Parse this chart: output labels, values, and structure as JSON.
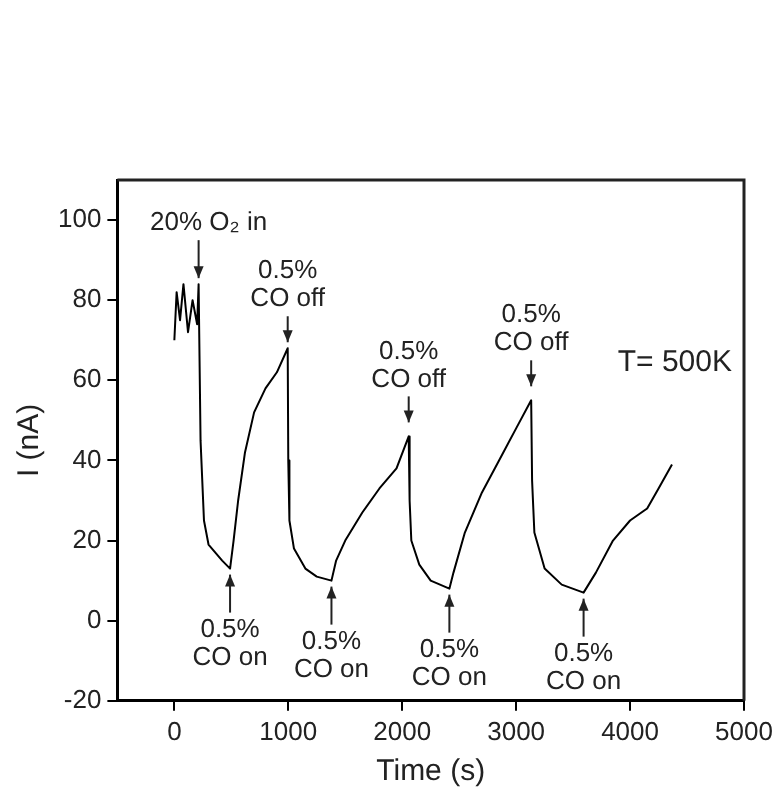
{
  "chart_data": {
    "type": "line",
    "xlabel": "Time (s)",
    "ylabel": "I (nA)",
    "xlim": [
      -500,
      5000
    ],
    "xticks": [
      0,
      1000,
      2000,
      3000,
      4000,
      5000
    ],
    "ylim": [
      -20,
      110
    ],
    "yticks": [
      -20,
      0,
      20,
      40,
      60,
      80,
      100
    ],
    "grid": false,
    "legend": false,
    "marker": "none",
    "line_style": "solid",
    "series": [
      {
        "color": "#000000",
        "x": [
          0,
          20,
          50,
          80,
          120,
          160,
          200,
          213,
          230,
          260,
          300,
          360,
          420,
          489,
          520,
          560,
          620,
          700,
          800,
          900,
          995,
          1000,
          1010,
          1050,
          1150,
          1250,
          1379,
          1420,
          1500,
          1650,
          1800,
          1950,
          2057,
          2065,
          2080,
          2150,
          2250,
          2414,
          2450,
          2550,
          2700,
          2850,
          3000,
          3132,
          3140,
          3160,
          3250,
          3400,
          3592,
          3700,
          3850,
          4000,
          4150,
          4250,
          4368
        ],
        "values": [
          70,
          82,
          75,
          84,
          72,
          80,
          74,
          84,
          45,
          25,
          19,
          17,
          15,
          13,
          20,
          30,
          42,
          52,
          58,
          62,
          68,
          40,
          25,
          18,
          13,
          11,
          10,
          15,
          20,
          27,
          33,
          38,
          46,
          30,
          20,
          14,
          10,
          8,
          12,
          22,
          32,
          40,
          48,
          55,
          35,
          22,
          13,
          9,
          7,
          12,
          20,
          25,
          28,
          33,
          39
        ]
      }
    ],
    "annotations": [
      {
        "text": "20% O₂ in",
        "x": 213,
        "y": 84
      },
      {
        "text": "0.5%\nCO off",
        "x": 995,
        "y": 68
      },
      {
        "text": "0.5%\nCO off",
        "x": 2057,
        "y": 48
      },
      {
        "text": "0.5%\nCO off",
        "x": 3132,
        "y": 57
      },
      {
        "text": "0.5%\nCO on",
        "x": 489,
        "y": 13
      },
      {
        "text": "0.5%\nCO on",
        "x": 1379,
        "y": 10
      },
      {
        "text": "0.5%\nCO on",
        "x": 2414,
        "y": 8
      },
      {
        "text": "0.5%\nCO on",
        "x": 3592,
        "y": 7
      },
      "T= 500K"
    ]
  }
}
